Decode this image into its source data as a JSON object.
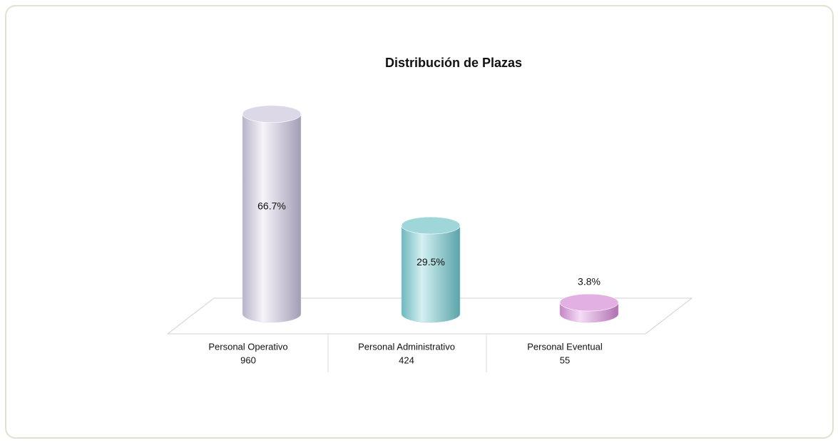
{
  "chart_data": {
    "type": "cylinder-bar",
    "title": "Distribución de Plazas",
    "categories": [
      "Personal Operativo",
      "Personal Administrativo",
      "Personal Eventual"
    ],
    "counts": [
      960,
      424,
      55
    ],
    "values": [
      66.7,
      29.5,
      3.8
    ],
    "value_labels": [
      "66.7%",
      "29.5%",
      "3.8%"
    ],
    "colors": [
      "#dcd8e8",
      "#9fd6da",
      "#e2b0e2"
    ]
  }
}
